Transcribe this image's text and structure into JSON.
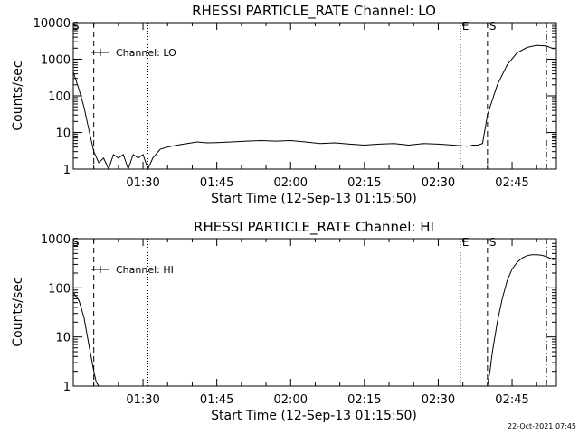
{
  "chart_data": [
    {
      "type": "line",
      "title": "RHESSI PARTICLE_RATE Channel: LO",
      "xlabel": "Start Time (12-Sep-13 01:15:50)",
      "ylabel": "Counts/sec",
      "yscale": "log",
      "ylim": [
        1,
        10000
      ],
      "y_ticks": [
        "1",
        "10",
        "100",
        "1000",
        "10000"
      ],
      "xlim": [
        "01:15:50",
        "02:54:00"
      ],
      "x_ticks": [
        "01:30",
        "01:45",
        "02:00",
        "02:15",
        "02:30",
        "02:45"
      ],
      "legend": {
        "label": "Channel: LO",
        "placement": "top-left"
      },
      "series": [
        {
          "x": [
            "01:15:50",
            "01:17:00",
            "01:18:00",
            "01:19:00",
            "01:20:00",
            "01:21:00",
            "01:22:00",
            "01:23:00",
            "01:24:00",
            "01:25:00",
            "01:26:00",
            "01:27:00",
            "01:28:00",
            "01:29:00",
            "01:30:00",
            "01:31:00",
            "01:32:00",
            "01:33:30",
            "01:35:00",
            "01:37:00",
            "01:39:00",
            "01:41:00",
            "01:43:00",
            "01:45:00",
            "01:48:00",
            "01:51:00",
            "01:54:00",
            "01:57:00",
            "02:00:00",
            "02:03:00",
            "02:06:00",
            "02:09:00",
            "02:12:00",
            "02:15:00",
            "02:18:00",
            "02:21:00",
            "02:24:00",
            "02:27:00",
            "02:30:00",
            "02:33:00",
            "02:36:00",
            "02:37:00",
            "02:38:00",
            "02:39:00",
            "02:40:00",
            "02:42:00",
            "02:44:00",
            "02:46:00",
            "02:48:00",
            "02:50:00",
            "02:52:00",
            "02:53:30"
          ],
          "values": [
            450,
            150,
            50,
            12,
            3,
            1.5,
            2,
            1,
            2.5,
            2,
            2.5,
            1,
            2.5,
            2,
            2.5,
            1,
            2,
            3.5,
            4,
            4.5,
            5,
            5.5,
            5.2,
            5.3,
            5.5,
            5.8,
            6,
            5.8,
            6,
            5.5,
            5,
            5.2,
            4.8,
            4.5,
            4.8,
            5,
            4.5,
            5,
            4.8,
            4.5,
            4.2,
            4.5,
            4.5,
            5,
            30,
            200,
            700,
            1500,
            2100,
            2400,
            2300,
            1900
          ]
        }
      ]
    },
    {
      "type": "line",
      "title": "RHESSI PARTICLE_RATE Channel: HI",
      "xlabel": "Start Time (12-Sep-13 01:15:50)",
      "ylabel": "Counts/sec",
      "yscale": "log",
      "ylim": [
        1,
        1000
      ],
      "y_ticks": [
        "1",
        "10",
        "100",
        "1000"
      ],
      "xlim": [
        "01:15:50",
        "02:54:00"
      ],
      "x_ticks": [
        "01:30",
        "01:45",
        "02:00",
        "02:15",
        "02:30",
        "02:45"
      ],
      "legend": {
        "label": "Channel: HI",
        "placement": "top-left"
      },
      "series": [
        {
          "x": [
            "01:15:50",
            "01:17:00",
            "01:18:00",
            "01:19:00",
            "01:20:00",
            "01:20:30",
            "01:21:00"
          ],
          "values": [
            80,
            55,
            25,
            7,
            2,
            1.2,
            1
          ]
        },
        {
          "x": [
            "02:40:00",
            "02:40:30",
            "02:41:00",
            "02:42:00",
            "02:43:00",
            "02:44:00",
            "02:45:00",
            "02:46:00",
            "02:47:00",
            "02:48:00",
            "02:49:00",
            "02:50:00",
            "02:51:00",
            "02:52:00",
            "02:53:30"
          ],
          "values": [
            1,
            2,
            5,
            20,
            60,
            140,
            240,
            330,
            400,
            450,
            470,
            470,
            460,
            430,
            370
          ]
        }
      ]
    }
  ],
  "markers": [
    {
      "time": "01:20:00",
      "style": "dashed"
    },
    {
      "time": "01:31:00",
      "style": "dotted"
    },
    {
      "time": "02:34:30",
      "style": "dotted",
      "label": "E"
    },
    {
      "time": "02:40:00",
      "style": "dashed",
      "label": "S"
    },
    {
      "time": "02:52:00",
      "style": "dashdot"
    }
  ],
  "corner_marker_label": "S",
  "footer_stamp": "22-Oct-2021 07:45"
}
